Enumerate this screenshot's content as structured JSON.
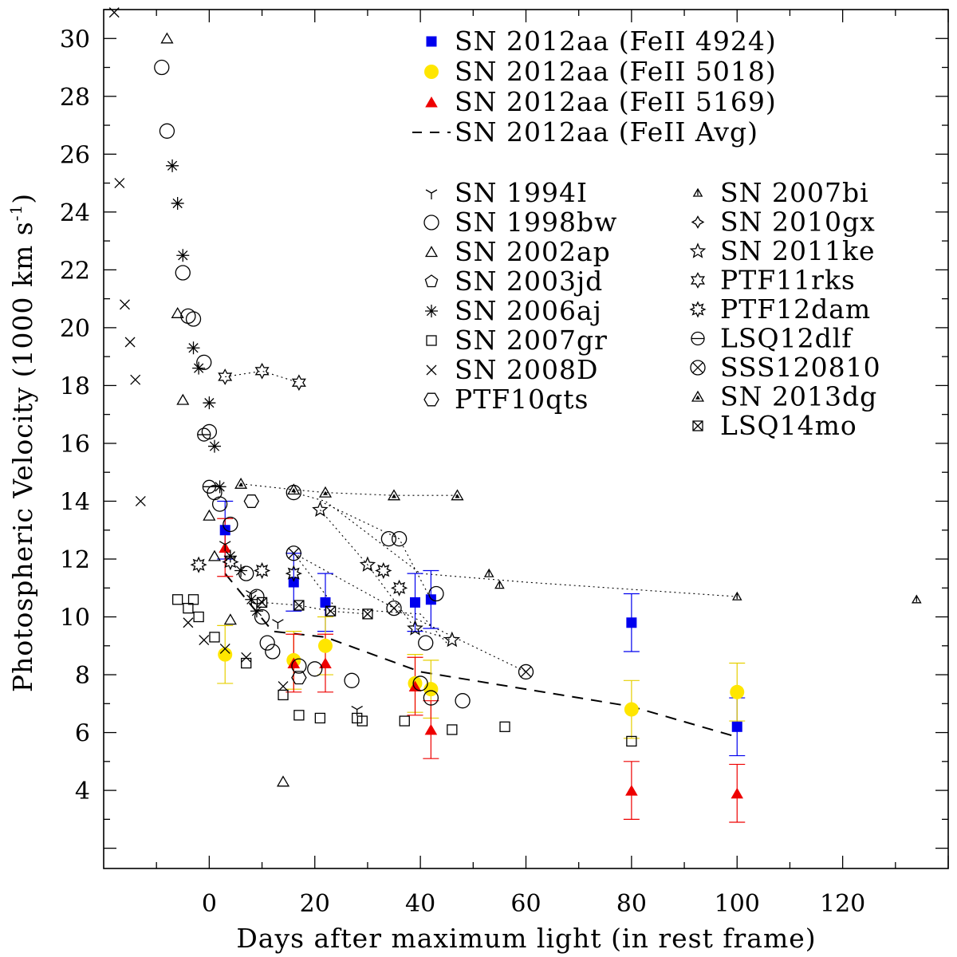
{
  "chart_data": {
    "type": "scatter",
    "xlabel": "Days after maximum light (in rest frame)",
    "ylabel": "Photospheric Velocity (1000 km s",
    "ylabel_sup": "-1",
    "ylabel_close": ")",
    "xlim": [
      -20,
      140
    ],
    "ylim": [
      1.3,
      31.0
    ],
    "xticks": [
      "0",
      "20",
      "40",
      "60",
      "80",
      "100",
      "120"
    ],
    "yticks": [
      "4",
      "6",
      "8",
      "10",
      "12",
      "14",
      "16",
      "18",
      "20",
      "22",
      "24",
      "26",
      "28",
      "30"
    ],
    "legend_main": [
      {
        "key": "s4924",
        "label": "SN 2012aa (FeII 4924)"
      },
      {
        "key": "s5018",
        "label": "SN 2012aa (FeII 5018)"
      },
      {
        "key": "s5169",
        "label": "SN 2012aa (FeII 5169)"
      },
      {
        "key": "avg",
        "label": "SN 2012aa (FeII Avg)"
      }
    ],
    "legend_left": [
      {
        "key": "sn1994I",
        "label": "SN 1994I"
      },
      {
        "key": "sn1998bw",
        "label": "SN 1998bw"
      },
      {
        "key": "sn2002ap",
        "label": "SN 2002ap"
      },
      {
        "key": "sn2003jd",
        "label": "SN 2003jd"
      },
      {
        "key": "sn2006aj",
        "label": "SN 2006aj"
      },
      {
        "key": "sn2007gr",
        "label": "SN 2007gr"
      },
      {
        "key": "sn2008D",
        "label": "SN 2008D"
      },
      {
        "key": "ptf10qts",
        "label": "PTF10qts"
      }
    ],
    "legend_right": [
      {
        "key": "sn2007bi",
        "label": "SN 2007bi"
      },
      {
        "key": "sn2010gx",
        "label": "SN 2010gx"
      },
      {
        "key": "sn2011ke",
        "label": "SN 2011ke"
      },
      {
        "key": "ptf11rks",
        "label": "PTF11rks"
      },
      {
        "key": "ptf12dam",
        "label": "PTF12dam"
      },
      {
        "key": "lsq12dlf",
        "label": "LSQ12dlf"
      },
      {
        "key": "sss120810",
        "label": "SSS120810"
      },
      {
        "key": "sn2013dg",
        "label": "SN 2013dg"
      },
      {
        "key": "lsq14mo",
        "label": "LSQ14mo"
      }
    ],
    "series": [
      {
        "key": "s4924",
        "name": "SN 2012aa (FeII 4924)",
        "marker": "filled-square",
        "color": "#0000ee",
        "x": [
          3,
          16,
          22,
          39,
          42,
          80,
          100
        ],
        "y": [
          13.0,
          11.2,
          10.5,
          10.5,
          10.6,
          9.8,
          6.2
        ],
        "err": [
          1.0,
          1.0,
          1.0,
          1.0,
          1.0,
          1.0,
          1.0
        ]
      },
      {
        "key": "s5018",
        "name": "SN 2012aa (FeII 5018)",
        "marker": "filled-circle",
        "color": "#ffe600",
        "x": [
          3,
          16,
          22,
          39,
          42,
          80,
          100
        ],
        "y": [
          8.7,
          8.5,
          9.0,
          7.7,
          7.5,
          6.8,
          7.4
        ],
        "err": [
          1.0,
          1.0,
          1.0,
          1.0,
          1.0,
          1.0,
          1.0
        ]
      },
      {
        "key": "s5169",
        "name": "SN 2012aa (FeII 5169)",
        "marker": "filled-triangle",
        "color": "#ee0000",
        "x": [
          3,
          16,
          22,
          39,
          42,
          80,
          100
        ],
        "y": [
          12.4,
          8.4,
          8.4,
          7.6,
          6.1,
          4.0,
          3.9
        ],
        "err": [
          1.0,
          1.0,
          1.0,
          1.0,
          1.0,
          1.0,
          1.0
        ]
      },
      {
        "key": "avg",
        "name": "SN 2012aa (FeII Avg)",
        "marker": "dashed-line",
        "color": "#000000",
        "x": [
          3,
          12,
          22,
          40,
          80,
          99
        ],
        "y": [
          11.5,
          9.5,
          9.3,
          8.1,
          6.9,
          5.9
        ]
      },
      {
        "key": "sn1994I",
        "name": "SN 1994I",
        "marker": "tri",
        "color": "#000000",
        "x": [
          3,
          8,
          13,
          28
        ],
        "y": [
          12.5,
          10.8,
          9.8,
          6.8
        ]
      },
      {
        "key": "sn1998bw",
        "name": "SN 1998bw",
        "marker": "circle",
        "color": "#000000",
        "x": [
          -9,
          -8,
          -5,
          -4,
          -3,
          -1,
          0,
          1,
          2,
          4,
          7,
          9,
          10,
          11,
          12,
          16,
          17,
          20,
          27,
          34,
          36,
          40,
          41,
          42,
          43,
          48
        ],
        "y": [
          29.0,
          26.8,
          21.9,
          20.4,
          20.3,
          18.8,
          16.4,
          14.3,
          13.9,
          13.2,
          11.5,
          10.7,
          10.0,
          9.1,
          8.8,
          14.3,
          8.3,
          8.2,
          7.8,
          12.7,
          12.7,
          7.7,
          9.1,
          7.2,
          10.8,
          7.1
        ]
      },
      {
        "key": "sn2002ap",
        "name": "SN 2002ap",
        "marker": "triangle",
        "color": "#000000",
        "x": [
          -8,
          -6,
          -5,
          0,
          1,
          4,
          14
        ],
        "y": [
          30.0,
          20.5,
          17.5,
          13.5,
          12.1,
          9.9,
          4.3
        ]
      },
      {
        "key": "sn2003jd",
        "name": "SN 2003jd",
        "marker": "pentagon",
        "color": "#000000",
        "x": [],
        "y": []
      },
      {
        "key": "sn2006aj",
        "name": "SN 2006aj",
        "marker": "asterisk",
        "color": "#000000",
        "x": [
          -7,
          -6,
          -5,
          -3,
          -2,
          0,
          1,
          2,
          4,
          6,
          8,
          9
        ],
        "y": [
          25.6,
          24.3,
          22.5,
          19.3,
          18.6,
          17.4,
          15.9,
          14.5,
          12.1,
          11.6,
          10.6,
          10.2
        ]
      },
      {
        "key": "sn2007gr",
        "name": "SN 2007gr",
        "marker": "square",
        "color": "#000000",
        "x": [
          -6,
          -4,
          -3,
          -2,
          1,
          7,
          14,
          17,
          21,
          28,
          29,
          37,
          46,
          56,
          80
        ],
        "y": [
          10.6,
          10.3,
          10.6,
          10.0,
          9.3,
          8.4,
          7.3,
          6.6,
          6.5,
          6.5,
          6.4,
          6.4,
          6.1,
          6.2,
          5.7
        ]
      },
      {
        "key": "sn2008D",
        "name": "SN 2008D",
        "marker": "x",
        "color": "#000000",
        "x": [
          -18,
          -17,
          -16,
          -15,
          -14,
          -13,
          -4,
          -1,
          3,
          7,
          14
        ],
        "y": [
          30.9,
          25.0,
          20.8,
          19.5,
          18.2,
          14.0,
          9.8,
          9.2,
          8.9,
          8.6,
          7.6
        ]
      },
      {
        "key": "ptf10qts",
        "name": "PTF10qts",
        "marker": "hexagon",
        "color": "#000000",
        "x": [
          8,
          17
        ],
        "y": [
          14.0,
          7.9
        ]
      },
      {
        "key": "sn2007bi",
        "name": "SN 2007bi",
        "marker": "tri-thin",
        "color": "#000000",
        "x": [
          53,
          55,
          100,
          134
        ],
        "y": [
          11.5,
          11.1,
          10.7,
          10.6
        ]
      },
      {
        "key": "sn2010gx",
        "name": "SN 2010gx",
        "marker": "star4",
        "color": "#000000",
        "x": [],
        "y": []
      },
      {
        "key": "sn2011ke",
        "name": "SN 2011ke",
        "marker": "star5",
        "color": "#000000",
        "x": [
          21,
          30,
          39,
          46
        ],
        "y": [
          13.7,
          11.8,
          9.6,
          9.2
        ],
        "dotted": true
      },
      {
        "key": "ptf11rks",
        "name": "PTF11rks",
        "marker": "star6",
        "color": "#000000",
        "x": [
          3,
          10,
          17
        ],
        "y": [
          18.3,
          18.5,
          18.1
        ],
        "dotted": true
      },
      {
        "key": "ptf12dam",
        "name": "PTF12dam",
        "marker": "burst",
        "color": "#000000",
        "x": [
          -2,
          4,
          10,
          16,
          33,
          36
        ],
        "y": [
          11.8,
          11.9,
          11.6,
          11.5,
          11.6,
          11.0
        ]
      },
      {
        "key": "lsq12dlf",
        "name": "LSQ12dlf",
        "marker": "circle-bar",
        "color": "#000000",
        "x": [
          -1,
          0
        ],
        "y": [
          16.3,
          14.5
        ]
      },
      {
        "key": "sss120810",
        "name": "SSS120810",
        "marker": "circle-x",
        "color": "#000000",
        "x": [
          16,
          35,
          60
        ],
        "y": [
          12.2,
          10.3,
          8.1
        ],
        "dotted": true
      },
      {
        "key": "sn2013dg",
        "name": "SN 2013dg",
        "marker": "tri-fill",
        "color": "#000000",
        "x": [
          6,
          16,
          22,
          35,
          47
        ],
        "y": [
          14.6,
          14.4,
          14.3,
          14.2,
          14.2
        ],
        "dotted": true
      },
      {
        "key": "lsq14mo",
        "name": "LSQ14mo",
        "marker": "square-x",
        "color": "#000000",
        "x": [
          10,
          17,
          23,
          30
        ],
        "y": [
          10.5,
          10.4,
          10.2,
          10.1
        ],
        "dotted": true
      }
    ],
    "extra_dotted_links": [
      {
        "x": [
          16,
          22,
          40,
          60,
          100
        ],
        "y": [
          14.3,
          14.0,
          11.5,
          11.2,
          10.7
        ]
      },
      {
        "x": [
          16,
          24,
          40,
          45
        ],
        "y": [
          12.2,
          10.3,
          10.1,
          9.1
        ]
      },
      {
        "x": [
          21,
          36,
          42
        ],
        "y": [
          14.0,
          12.7,
          10.6
        ]
      }
    ]
  }
}
